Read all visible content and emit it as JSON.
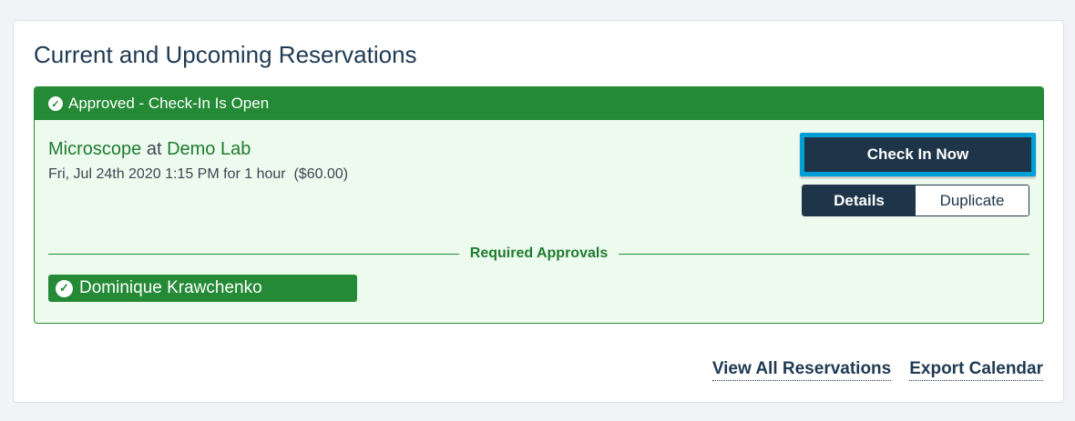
{
  "title": "Current and Upcoming Reservations",
  "reservation": {
    "status": "Approved - Check-In Is Open",
    "instrument": "Microscope",
    "at": "at",
    "lab": "Demo Lab",
    "when": "Fri, Jul 24th 2020 1:15 PM for 1 hour  ($60.00)",
    "check_in_label": "Check In Now",
    "details_label": "Details",
    "duplicate_label": "Duplicate",
    "approvals_heading": "Required Approvals",
    "approvers": [
      "Dominique Krawchenko"
    ]
  },
  "links": {
    "view_all": "View All Reservations",
    "export": "Export Calendar"
  },
  "colors": {
    "success": "#248a36",
    "navy": "#1e3448",
    "focus": "#00a0d6"
  }
}
